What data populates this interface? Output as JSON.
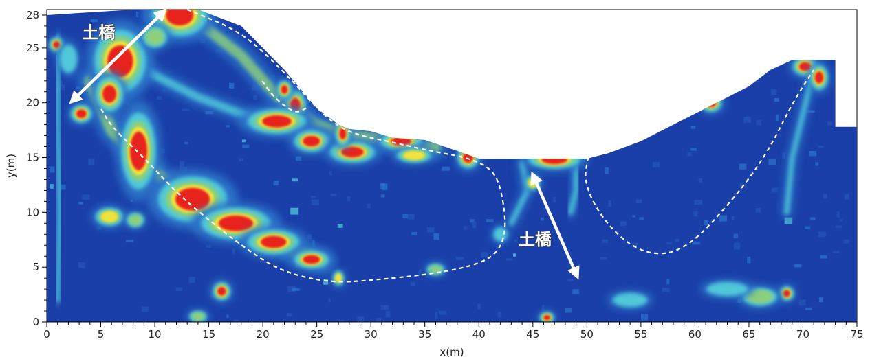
{
  "chart_data": {
    "type": "heatmap",
    "xlabel": "x(m)",
    "ylabel": "y(m)",
    "xlim": [
      0,
      75
    ],
    "ylim": [
      0,
      28.5
    ],
    "x_ticks": [
      0,
      5,
      10,
      15,
      20,
      25,
      30,
      35,
      40,
      45,
      50,
      55,
      60,
      65,
      70,
      75
    ],
    "y_ticks": [
      0,
      5,
      10,
      15,
      20,
      25,
      28
    ],
    "colors": {
      "background": "#1a3fa8",
      "low": "#2a72c8",
      "mid": "#4fc8d8",
      "high_low": "#8ed07a",
      "high": "#f2e23a",
      "peak": "#e8201c"
    },
    "ground_profile": [
      [
        0,
        28
      ],
      [
        8,
        28.5
      ],
      [
        14,
        28.5
      ],
      [
        18,
        27
      ],
      [
        22,
        23
      ],
      [
        25,
        19.5
      ],
      [
        27,
        18
      ],
      [
        28,
        17.6
      ],
      [
        30,
        17.4
      ],
      [
        32,
        16.8
      ],
      [
        35,
        16.6
      ],
      [
        38,
        15.6
      ],
      [
        40,
        14.9
      ],
      [
        50,
        14.9
      ],
      [
        52,
        15.4
      ],
      [
        55,
        16.5
      ],
      [
        58,
        18
      ],
      [
        61,
        19.5
      ],
      [
        65,
        21.5
      ],
      [
        67,
        23
      ],
      [
        69,
        23.9
      ],
      [
        73,
        23.9
      ],
      [
        73,
        17.8
      ],
      [
        75,
        17.8
      ],
      [
        75,
        0
      ],
      [
        0,
        0
      ]
    ],
    "hotspots": [
      {
        "x": 12.3,
        "y": 28.0,
        "rx": 1.6,
        "ry": 1.2,
        "v": 1.0
      },
      {
        "x": 6.8,
        "y": 23.8,
        "rx": 1.5,
        "ry": 1.8,
        "v": 1.0
      },
      {
        "x": 5.8,
        "y": 20.8,
        "rx": 0.8,
        "ry": 1.0,
        "v": 1.0
      },
      {
        "x": 3.2,
        "y": 19.0,
        "rx": 0.6,
        "ry": 0.5,
        "v": 0.95
      },
      {
        "x": 8.5,
        "y": 15.6,
        "rx": 1.0,
        "ry": 2.2,
        "v": 1.0
      },
      {
        "x": 13.5,
        "y": 11.2,
        "rx": 2.0,
        "ry": 1.3,
        "v": 1.0
      },
      {
        "x": 17.5,
        "y": 9.0,
        "rx": 2.0,
        "ry": 0.9,
        "v": 0.95
      },
      {
        "x": 21.0,
        "y": 7.3,
        "rx": 1.5,
        "ry": 0.7,
        "v": 0.9
      },
      {
        "x": 24.5,
        "y": 5.7,
        "rx": 1.0,
        "ry": 0.5,
        "v": 0.9
      },
      {
        "x": 16.2,
        "y": 2.8,
        "rx": 0.5,
        "ry": 0.5,
        "v": 0.9
      },
      {
        "x": 23.0,
        "y": 19.8,
        "rx": 0.6,
        "ry": 0.8,
        "v": 1.0
      },
      {
        "x": 22.0,
        "y": 21.2,
        "rx": 0.4,
        "ry": 0.5,
        "v": 0.9
      },
      {
        "x": 21.3,
        "y": 18.3,
        "rx": 1.7,
        "ry": 0.7,
        "v": 0.95
      },
      {
        "x": 24.5,
        "y": 16.5,
        "rx": 1.0,
        "ry": 0.6,
        "v": 0.9
      },
      {
        "x": 28.3,
        "y": 15.5,
        "rx": 1.3,
        "ry": 0.6,
        "v": 1.0
      },
      {
        "x": 27.4,
        "y": 17.2,
        "rx": 0.4,
        "ry": 0.7,
        "v": 1.0
      },
      {
        "x": 32.8,
        "y": 16.5,
        "rx": 1.2,
        "ry": 0.5,
        "v": 1.0
      },
      {
        "x": 34.0,
        "y": 15.2,
        "rx": 1.0,
        "ry": 0.4,
        "v": 0.85
      },
      {
        "x": 39.0,
        "y": 15.0,
        "rx": 0.6,
        "ry": 0.6,
        "v": 0.9
      },
      {
        "x": 47.0,
        "y": 14.8,
        "rx": 1.5,
        "ry": 0.5,
        "v": 0.9
      },
      {
        "x": 61.5,
        "y": 20.0,
        "rx": 0.6,
        "ry": 0.5,
        "v": 1.0
      },
      {
        "x": 70.2,
        "y": 23.3,
        "rx": 0.7,
        "ry": 0.5,
        "v": 1.0
      },
      {
        "x": 71.5,
        "y": 22.3,
        "rx": 0.5,
        "ry": 0.7,
        "v": 1.0
      },
      {
        "x": 68.5,
        "y": 2.6,
        "rx": 0.4,
        "ry": 0.4,
        "v": 0.95
      },
      {
        "x": 46.3,
        "y": 0.4,
        "rx": 0.4,
        "ry": 0.3,
        "v": 0.9
      },
      {
        "x": 0.9,
        "y": 25.3,
        "rx": 0.4,
        "ry": 0.4,
        "v": 0.9
      },
      {
        "x": 5.8,
        "y": 9.6,
        "rx": 0.8,
        "ry": 0.5,
        "v": 0.7
      },
      {
        "x": 8.2,
        "y": 9.3,
        "rx": 0.5,
        "ry": 0.4,
        "v": 0.6
      },
      {
        "x": 36.0,
        "y": 4.8,
        "rx": 0.5,
        "ry": 0.3,
        "v": 0.6
      },
      {
        "x": 27.0,
        "y": 4.0,
        "rx": 0.3,
        "ry": 0.4,
        "v": 0.7
      },
      {
        "x": 45.0,
        "y": 12.7,
        "rx": 0.4,
        "ry": 0.4,
        "v": 0.7
      },
      {
        "x": 66.0,
        "y": 2.3,
        "rx": 1.0,
        "ry": 0.5,
        "v": 0.55
      },
      {
        "x": 14.0,
        "y": 0.5,
        "rx": 0.5,
        "ry": 0.3,
        "v": 0.6
      },
      {
        "x": 2.0,
        "y": 24.0,
        "rx": 0.5,
        "ry": 0.8,
        "v": 0.5
      },
      {
        "x": 10.0,
        "y": 26.0,
        "rx": 0.7,
        "ry": 0.6,
        "v": 0.55
      },
      {
        "x": 42.0,
        "y": 8.0,
        "rx": 0.4,
        "ry": 0.4,
        "v": 0.5
      },
      {
        "x": 63.0,
        "y": 3.0,
        "rx": 1.2,
        "ry": 0.4,
        "v": 0.45
      },
      {
        "x": 54.0,
        "y": 2.0,
        "rx": 1.0,
        "ry": 0.4,
        "v": 0.35
      }
    ],
    "bands": [
      {
        "points": [
          [
            10,
            28
          ],
          [
            14.5,
            27
          ],
          [
            18,
            24.3
          ],
          [
            20.5,
            21.5
          ],
          [
            22.5,
            19.5
          ],
          [
            25,
            18
          ],
          [
            28,
            17
          ],
          [
            32,
            16.6
          ],
          [
            36,
            15.9
          ]
        ],
        "width": 0.8,
        "v": 0.55
      },
      {
        "points": [
          [
            6,
            25
          ],
          [
            10,
            22.5
          ],
          [
            14,
            20.5
          ],
          [
            18,
            19
          ],
          [
            22,
            17.8
          ],
          [
            26,
            16.8
          ]
        ],
        "width": 0.6,
        "v": 0.45
      },
      {
        "points": [
          [
            4,
            22
          ],
          [
            6,
            17.5
          ],
          [
            9,
            14.5
          ],
          [
            13,
            11.2
          ],
          [
            17.5,
            8.8
          ],
          [
            21,
            7.3
          ],
          [
            25.5,
            5.5
          ]
        ],
        "width": 0.9,
        "v": 0.6
      },
      {
        "points": [
          [
            1,
            26
          ],
          [
            1,
            18
          ],
          [
            1.2,
            10
          ],
          [
            1,
            2
          ]
        ],
        "width": 0.35,
        "v": 0.4
      },
      {
        "points": [
          [
            44,
            14.5
          ],
          [
            44.5,
            12
          ],
          [
            43,
            9
          ]
        ],
        "width": 0.4,
        "v": 0.4
      },
      {
        "points": [
          [
            71,
            23
          ],
          [
            70,
            19
          ],
          [
            69,
            15
          ],
          [
            68.5,
            10
          ]
        ],
        "width": 0.4,
        "v": 0.45
      },
      {
        "points": [
          [
            49,
            14.5
          ],
          [
            49,
            12
          ],
          [
            48.5,
            10
          ]
        ],
        "width": 0.4,
        "v": 0.4
      }
    ],
    "dashed_boundaries": [
      [
        [
          13,
          28.5
        ],
        [
          18,
          26.5
        ],
        [
          22,
          22.8
        ],
        [
          25,
          19.5
        ],
        [
          27,
          17.8
        ],
        [
          29,
          17
        ],
        [
          32,
          16.4
        ],
        [
          36,
          15.5
        ],
        [
          39,
          15.0
        ],
        [
          41.5,
          13.8
        ],
        [
          42.3,
          11
        ],
        [
          42.5,
          8
        ],
        [
          41.5,
          6
        ],
        [
          39,
          5
        ],
        [
          35,
          4.3
        ],
        [
          30,
          3.8
        ],
        [
          27,
          3.6
        ],
        [
          24,
          4.0
        ],
        [
          21,
          5.0
        ],
        [
          18,
          7.0
        ],
        [
          15,
          9.3
        ],
        [
          12,
          11.8
        ],
        [
          9,
          15
        ],
        [
          6,
          17.8
        ],
        [
          5,
          19.5
        ]
      ],
      [
        [
          24,
          19.5
        ],
        [
          23,
          19
        ],
        [
          21,
          20.5
        ],
        [
          19.8,
          22.2
        ]
      ],
      [
        [
          50.3,
          15.7
        ],
        [
          50,
          14.5
        ],
        [
          49.8,
          13
        ],
        [
          50.5,
          11
        ],
        [
          52,
          8.8
        ],
        [
          54,
          7
        ],
        [
          56,
          6.2
        ],
        [
          58,
          6.3
        ],
        [
          60,
          7.5
        ],
        [
          62,
          9.5
        ],
        [
          65,
          13
        ],
        [
          67,
          16
        ],
        [
          68.8,
          19.5
        ],
        [
          70,
          21.5
        ],
        [
          71,
          23
        ]
      ]
    ],
    "annotations": [
      {
        "text": "土橋",
        "x": 4.8,
        "y": 25.9,
        "arrow_from": [
          2.5,
          20.3
        ],
        "arrow_to": [
          10.7,
          28.2
        ]
      },
      {
        "text": "土橋",
        "x": 45.2,
        "y": 7.0,
        "arrow_from": [
          49.0,
          4.4
        ],
        "arrow_to": [
          45.1,
          13.2
        ]
      }
    ]
  }
}
